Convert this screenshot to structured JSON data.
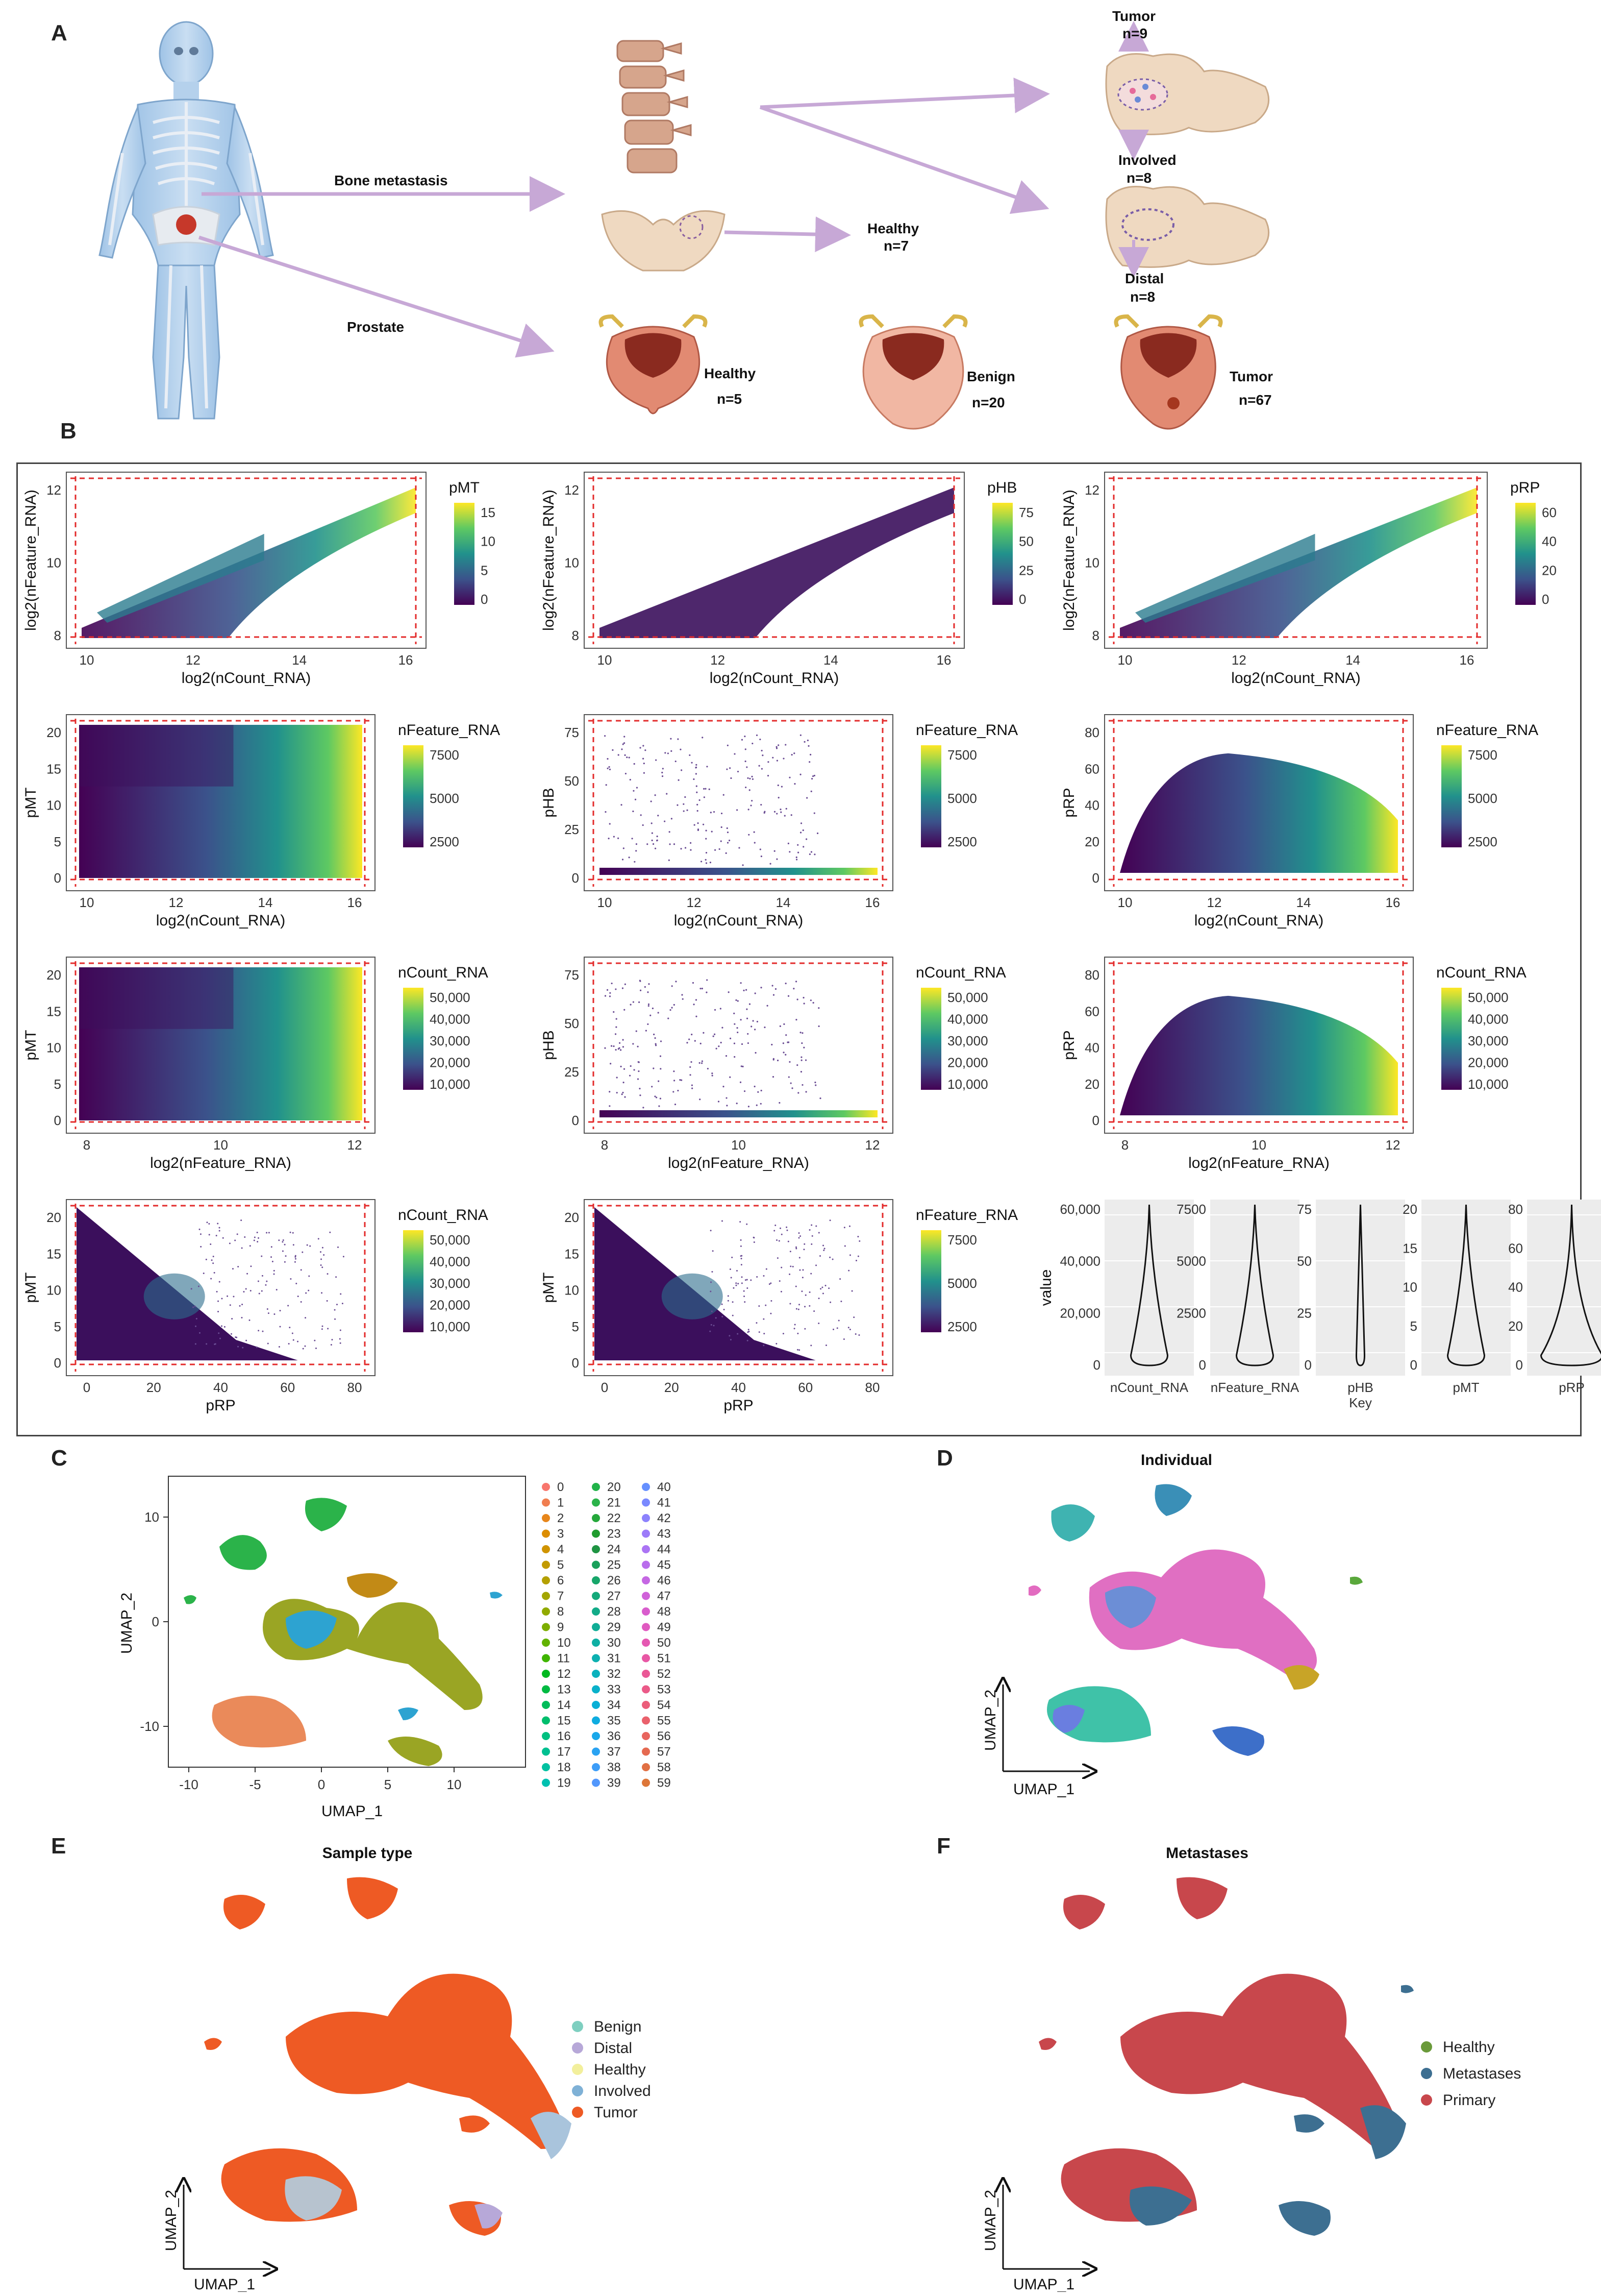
{
  "panels": {
    "A": "A",
    "B": "B",
    "C": "C",
    "D": "D",
    "E": "E",
    "F": "F"
  },
  "panelA": {
    "bone_metastasis": "Bone   metastasis",
    "prostate": "Prostate",
    "tumor_bone": "Tumor",
    "tumor_bone_n": "n=9",
    "involved": "Involved",
    "involved_n": "n=8",
    "distal": "Distal",
    "distal_n": "n=8",
    "healthy_bone": "Healthy",
    "healthy_bone_n": "n=7",
    "healthy_prostate": "Healthy",
    "healthy_prostate_n": "n=5",
    "benign": "Benign",
    "benign_n": "n=20",
    "tumor_prostate": "Tumor",
    "tumor_prostate_n": "n=67"
  },
  "qc_plots": [
    {
      "id": "r1c1",
      "xlabel": "log2(nCount_RNA)",
      "ylabel": "log2(nFeature_RNA)",
      "legend": "pMT",
      "xticks": [
        "10",
        "12",
        "14",
        "16"
      ],
      "yticks": [
        "8",
        "10",
        "12"
      ],
      "legticks": [
        "15",
        "10",
        "5",
        "0"
      ],
      "kind": "diag"
    },
    {
      "id": "r1c2",
      "xlabel": "log2(nCount_RNA)",
      "ylabel": "log2(nFeature_RNA)",
      "legend": "pHB",
      "xticks": [
        "10",
        "12",
        "14",
        "16"
      ],
      "yticks": [
        "8",
        "10",
        "12"
      ],
      "legticks": [
        "75",
        "50",
        "25",
        "0"
      ],
      "kind": "diagdark"
    },
    {
      "id": "r1c3",
      "xlabel": "log2(nCount_RNA)",
      "ylabel": "log2(nFeature_RNA)",
      "legend": "pRP",
      "xticks": [
        "10",
        "12",
        "14",
        "16"
      ],
      "yticks": [
        "8",
        "10",
        "12"
      ],
      "legticks": [
        "60",
        "40",
        "20",
        "0"
      ],
      "kind": "diag"
    },
    {
      "id": "r2c1",
      "xlabel": "log2(nCount_RNA)",
      "ylabel": "pMT",
      "legend": "nFeature_RNA",
      "xticks": [
        "10",
        "12",
        "14",
        "16"
      ],
      "yticks": [
        "0",
        "5",
        "10",
        "15",
        "20"
      ],
      "legticks": [
        "7500",
        "5000",
        "2500"
      ],
      "kind": "block"
    },
    {
      "id": "r2c2",
      "xlabel": "log2(nCount_RNA)",
      "ylabel": "pHB",
      "legend": "nFeature_RNA",
      "xticks": [
        "10",
        "12",
        "14",
        "16"
      ],
      "yticks": [
        "0",
        "25",
        "50",
        "75"
      ],
      "legticks": [
        "7500",
        "5000",
        "2500"
      ],
      "kind": "flat"
    },
    {
      "id": "r2c3",
      "xlabel": "log2(nCount_RNA)",
      "ylabel": "pRP",
      "legend": "nFeature_RNA",
      "xticks": [
        "10",
        "12",
        "14",
        "16"
      ],
      "yticks": [
        "0",
        "20",
        "40",
        "60",
        "80"
      ],
      "legticks": [
        "7500",
        "5000",
        "2500"
      ],
      "kind": "dome"
    },
    {
      "id": "r3c1",
      "xlabel": "log2(nFeature_RNA)",
      "ylabel": "pMT",
      "legend": "nCount_RNA",
      "xticks": [
        "8",
        "10",
        "12"
      ],
      "yticks": [
        "0",
        "5",
        "10",
        "15",
        "20"
      ],
      "legticks": [
        "50,000",
        "40,000",
        "30,000",
        "20,000",
        "10,000"
      ],
      "kind": "block"
    },
    {
      "id": "r3c2",
      "xlabel": "log2(nFeature_RNA)",
      "ylabel": "pHB",
      "legend": "nCount_RNA",
      "xticks": [
        "8",
        "10",
        "12"
      ],
      "yticks": [
        "0",
        "25",
        "50",
        "75"
      ],
      "legticks": [
        "50,000",
        "40,000",
        "30,000",
        "20,000",
        "10,000"
      ],
      "kind": "flat"
    },
    {
      "id": "r3c3",
      "xlabel": "log2(nFeature_RNA)",
      "ylabel": "pRP",
      "legend": "nCount_RNA",
      "xticks": [
        "8",
        "10",
        "12"
      ],
      "yticks": [
        "0",
        "20",
        "40",
        "60",
        "80"
      ],
      "legticks": [
        "50,000",
        "40,000",
        "30,000",
        "20,000",
        "10,000"
      ],
      "kind": "dome"
    },
    {
      "id": "r4c1",
      "xlabel": "pRP",
      "ylabel": "pMT",
      "legend": "nCount_RNA",
      "xticks": [
        "0",
        "20",
        "40",
        "60",
        "80"
      ],
      "yticks": [
        "0",
        "5",
        "10",
        "15",
        "20"
      ],
      "legticks": [
        "50,000",
        "40,000",
        "30,000",
        "20,000",
        "10,000"
      ],
      "kind": "tri"
    },
    {
      "id": "r4c2",
      "xlabel": "pRP",
      "ylabel": "pMT",
      "legend": "nFeature_RNA",
      "xticks": [
        "0",
        "20",
        "40",
        "60",
        "80"
      ],
      "yticks": [
        "0",
        "5",
        "10",
        "15",
        "20"
      ],
      "legticks": [
        "7500",
        "5000",
        "2500"
      ],
      "kind": "tri"
    }
  ],
  "violins": {
    "ylabel": "value",
    "xkey": "Key",
    "items": [
      {
        "name": "nCount_RNA",
        "ticks": [
          "0",
          "20,000",
          "40,000",
          "60,000"
        ]
      },
      {
        "name": "nFeature_RNA",
        "ticks": [
          "0",
          "2500",
          "5000",
          "7500"
        ]
      },
      {
        "name": "pHB",
        "ticks": [
          "0",
          "25",
          "50",
          "75"
        ]
      },
      {
        "name": "pMT",
        "ticks": [
          "0",
          "5",
          "10",
          "15",
          "20"
        ]
      },
      {
        "name": "pRP",
        "ticks": [
          "0",
          "20",
          "40",
          "60",
          "80"
        ]
      }
    ]
  },
  "panelC": {
    "xlabel": "UMAP_1",
    "ylabel": "UMAP_2",
    "xticks": [
      "-10",
      "-5",
      "0",
      "5",
      "10"
    ],
    "yticks": [
      "10",
      "0",
      "-10"
    ],
    "clusters": [
      "0",
      "1",
      "2",
      "3",
      "4",
      "5",
      "6",
      "7",
      "8",
      "9",
      "10",
      "11",
      "12",
      "13",
      "14",
      "15",
      "16",
      "17",
      "18",
      "19",
      "20",
      "21",
      "22",
      "23",
      "24",
      "25",
      "26",
      "27",
      "28",
      "29",
      "30",
      "31",
      "32",
      "33",
      "34",
      "35",
      "36",
      "37",
      "38",
      "39",
      "40",
      "41",
      "42",
      "43",
      "44",
      "45",
      "46",
      "47",
      "48",
      "49",
      "50",
      "51",
      "52",
      "53",
      "54",
      "55",
      "56",
      "57",
      "58",
      "59"
    ]
  },
  "panelD": {
    "title": "Individual",
    "xlabel": "UMAP_1",
    "ylabel": "UMAP_2"
  },
  "panelE": {
    "title": "Sample type",
    "xlabel": "UMAP_1",
    "ylabel": "UMAP_2",
    "legend": [
      {
        "label": "Benign",
        "color": "#7ecfc0"
      },
      {
        "label": "Distal",
        "color": "#b7a8d8"
      },
      {
        "label": "Healthy",
        "color": "#f2ef9c"
      },
      {
        "label": "Involved",
        "color": "#7fb1d6"
      },
      {
        "label": "Tumor",
        "color": "#ee5a24"
      }
    ]
  },
  "panelF": {
    "title": "Metastases",
    "xlabel": "UMAP_1",
    "ylabel": "UMAP_2",
    "legend": [
      {
        "label": "Healthy",
        "color": "#6a9a3a"
      },
      {
        "label": "Metastases",
        "color": "#3d6f91"
      },
      {
        "label": "Primary",
        "color": "#c8474c"
      }
    ]
  }
}
